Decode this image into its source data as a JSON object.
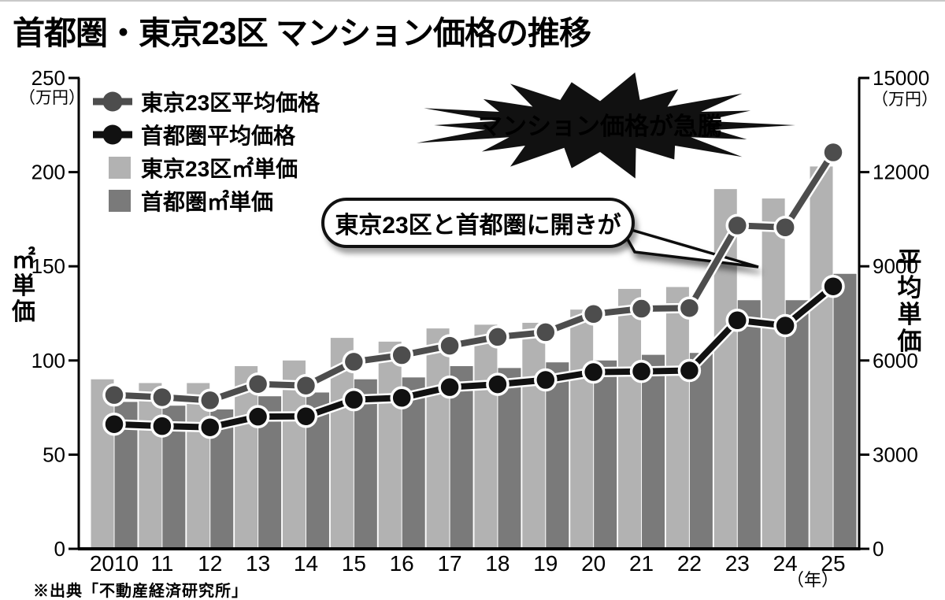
{
  "title": "首都圏・東京23区 マンション価格の推移",
  "source": "※出典「不動産経済研究所」",
  "annotations": {
    "burst": "マンション価格が急騰",
    "bubble": "東京23区と首都圏に開きが"
  },
  "legend": [
    {
      "label": "東京23区平均価格",
      "type": "line",
      "color": "#4d4d4d"
    },
    {
      "label": "首都圏平均価格",
      "type": "line",
      "color": "#111111"
    },
    {
      "label": "東京23区㎡単価",
      "type": "bar",
      "color": "#b2b2b2"
    },
    {
      "label": "首都圏㎡単価",
      "type": "bar",
      "color": "#7a7a7a"
    }
  ],
  "chart_data": {
    "type": "combo bar+line, dual axis",
    "categories": [
      "2010",
      "11",
      "12",
      "13",
      "14",
      "15",
      "16",
      "17",
      "18",
      "19",
      "20",
      "21",
      "22",
      "23",
      "24",
      "25"
    ],
    "x_suffix": "（年）",
    "axis_left": {
      "label": "㎡単価",
      "unit": "（万円）",
      "ticks": [
        0,
        50,
        100,
        150,
        200,
        250
      ],
      "min": 0,
      "max": 250
    },
    "axis_right": {
      "label": "平均単価",
      "unit": "（万円）",
      "ticks": [
        0,
        3000,
        6000,
        9000,
        12000,
        15000
      ],
      "min": 0,
      "max": 15000
    },
    "grid": false,
    "legend_position": "top-left inside plot",
    "series": [
      {
        "name": "東京23区㎡単価",
        "type": "bar",
        "axis": "left",
        "color": "#b2b2b2",
        "values": [
          90,
          88,
          88,
          97,
          100,
          112,
          110,
          117,
          119,
          120,
          127,
          138,
          139,
          191,
          186,
          203
        ]
      },
      {
        "name": "首都圏㎡単価",
        "type": "bar",
        "axis": "left",
        "color": "#7a7a7a",
        "values": [
          78,
          76,
          74,
          81,
          83,
          90,
          91,
          97,
          96,
          99,
          100,
          103,
          104,
          132,
          132,
          146
        ]
      },
      {
        "name": "東京23区平均価格",
        "type": "line",
        "axis": "right",
        "color": "#4d4d4d",
        "values": [
          4900,
          4830,
          4730,
          5250,
          5200,
          5960,
          6170,
          6470,
          6750,
          6900,
          7480,
          7650,
          7670,
          10300,
          10240,
          12630
        ]
      },
      {
        "name": "首都圏平均価格",
        "type": "line",
        "axis": "right",
        "color": "#111111",
        "values": [
          3970,
          3910,
          3870,
          4210,
          4220,
          4750,
          4810,
          5150,
          5240,
          5380,
          5630,
          5650,
          5680,
          7280,
          7110,
          8360
        ]
      }
    ]
  }
}
